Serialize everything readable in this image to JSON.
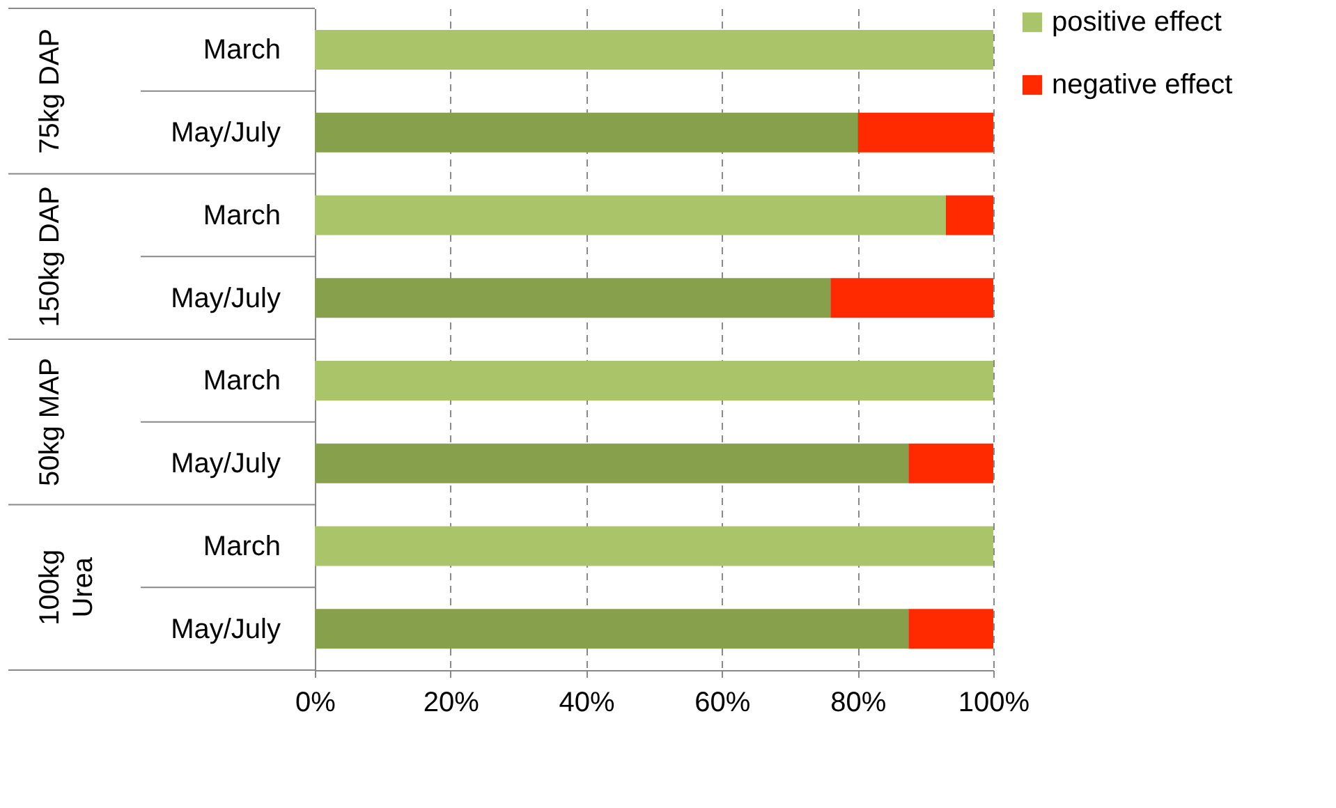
{
  "chart_data": {
    "type": "bar",
    "orientation": "horizontal",
    "stacked": true,
    "categories": [
      "March",
      "May/July",
      "March",
      "May/July",
      "March",
      "May/July",
      "March",
      "May/July"
    ],
    "series": [
      {
        "name": "positive effect",
        "color": "#aac46a",
        "colors": [
          "#aac46a",
          "#87a04b",
          "#aac46a",
          "#87a04b",
          "#aac46a",
          "#87a04b",
          "#aac46a",
          "#87a04b"
        ],
        "values": [
          100,
          80,
          93,
          76,
          100,
          87.5,
          100,
          87.5
        ]
      },
      {
        "name": "negative effect",
        "color": "#ff2a00",
        "values": [
          0,
          20,
          7,
          24,
          0,
          12.5,
          0,
          12.5
        ]
      }
    ],
    "annotations": [
      "75kg DAP",
      "150kg DAP",
      "50kg MAP",
      "100kg\nUrea"
    ],
    "xlim": [
      0,
      100
    ],
    "xticks": [
      {
        "value": 0,
        "label": "0%"
      },
      {
        "value": 20,
        "label": "20%"
      },
      {
        "value": 40,
        "label": "40%"
      },
      {
        "value": 60,
        "label": "60%"
      },
      {
        "value": 80,
        "label": "80%"
      },
      {
        "value": 100,
        "label": "100%"
      }
    ],
    "grid": "x",
    "legend": "right"
  }
}
